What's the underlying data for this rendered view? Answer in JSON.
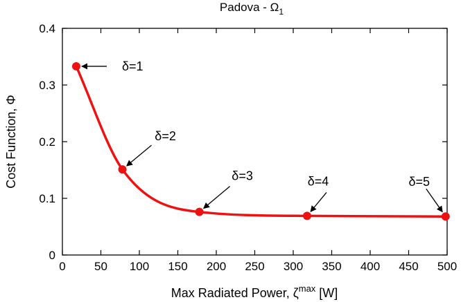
{
  "chart_data": {
    "type": "line",
    "title_main": "Padova - Ω",
    "title_sub": "1",
    "xlabel_main": "Max Radiated Power, ζ",
    "xlabel_sup": "max",
    "xlabel_unit": " [W]",
    "ylabel": "Cost Function, Φ",
    "xlim": [
      0,
      500
    ],
    "ylim": [
      0,
      0.4
    ],
    "xticks": [
      "0",
      "50",
      "100",
      "150",
      "200",
      "250",
      "300",
      "350",
      "400",
      "450",
      "500"
    ],
    "yticks": [
      "0",
      "0.1",
      "0.2",
      "0.3",
      "0.4"
    ],
    "grid": false,
    "series": [
      {
        "color": "#ee1111",
        "x": [
          18,
          78,
          178,
          318,
          498
        ],
        "y": [
          0.333,
          0.151,
          0.076,
          0.069,
          0.068
        ]
      }
    ],
    "annotations": [
      {
        "label": "δ=1",
        "x": 18,
        "y": 0.333
      },
      {
        "label": "δ=2",
        "x": 78,
        "y": 0.151
      },
      {
        "label": "δ=3",
        "x": 178,
        "y": 0.076
      },
      {
        "label": "δ=4",
        "x": 318,
        "y": 0.069
      },
      {
        "label": "δ=5",
        "x": 498,
        "y": 0.068
      }
    ]
  }
}
